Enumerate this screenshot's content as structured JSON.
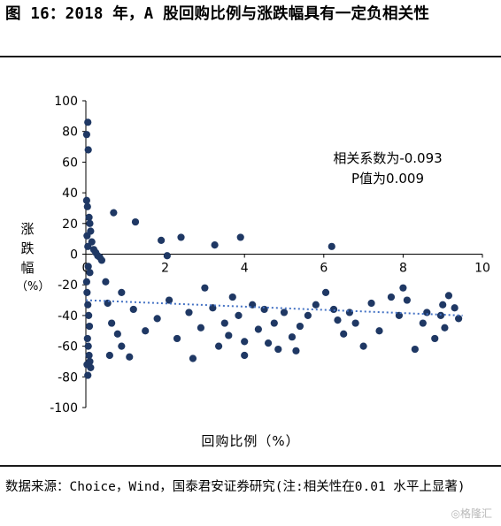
{
  "header": {
    "title": "图 16：2018 年，A 股回购比例与涨跌幅具有一定负相关性"
  },
  "chart_data": {
    "type": "scatter",
    "title": "",
    "xlabel": "回购比例（%）",
    "ylabel_chars": [
      "涨",
      "跌",
      "幅",
      "（%）"
    ],
    "xlim": [
      0,
      10
    ],
    "ylim": [
      -100,
      100
    ],
    "x_ticks": [
      0,
      2,
      4,
      6,
      8,
      10
    ],
    "y_ticks": [
      100,
      80,
      60,
      40,
      20,
      0,
      -20,
      -40,
      -60,
      -80,
      -100
    ],
    "grid": false,
    "legend": "none",
    "point_color": "#1f3864",
    "trendline": {
      "style": "dotted",
      "color": "#4472c4",
      "x": [
        0,
        9.5
      ],
      "y": [
        -30,
        -40
      ]
    },
    "annotation": [
      "相关系数为-0.093",
      "P值为0.009"
    ],
    "series": [
      {
        "points": [
          [
            0.05,
            86
          ],
          [
            0.02,
            78
          ],
          [
            0.06,
            68
          ],
          [
            0.02,
            35
          ],
          [
            0.04,
            31
          ],
          [
            0.08,
            24
          ],
          [
            0.1,
            20
          ],
          [
            0.12,
            15
          ],
          [
            0.03,
            12
          ],
          [
            0.15,
            8
          ],
          [
            0.05,
            5
          ],
          [
            0.2,
            3
          ],
          [
            0.25,
            1
          ],
          [
            0.3,
            -1
          ],
          [
            0.35,
            -2
          ],
          [
            0.4,
            -4
          ],
          [
            0.06,
            -8
          ],
          [
            0.1,
            -12
          ],
          [
            0.02,
            -18
          ],
          [
            0.03,
            -25
          ],
          [
            0.05,
            -33
          ],
          [
            0.07,
            -40
          ],
          [
            0.09,
            -47
          ],
          [
            0.04,
            -55
          ],
          [
            0.06,
            -60
          ],
          [
            0.08,
            -66
          ],
          [
            0.1,
            -70
          ],
          [
            0.03,
            -72
          ],
          [
            0.12,
            -74
          ],
          [
            0.05,
            -79
          ],
          [
            0.7,
            27
          ],
          [
            1.25,
            21
          ],
          [
            1.9,
            9
          ],
          [
            2.4,
            11
          ],
          [
            3.25,
            6
          ],
          [
            3.9,
            11
          ],
          [
            6.2,
            5
          ],
          [
            2.05,
            -1
          ],
          [
            0.5,
            -18
          ],
          [
            0.55,
            -32
          ],
          [
            0.65,
            -45
          ],
          [
            0.8,
            -52
          ],
          [
            0.9,
            -60
          ],
          [
            0.6,
            -66
          ],
          [
            1.1,
            -67
          ],
          [
            0.9,
            -25
          ],
          [
            1.2,
            -36
          ],
          [
            1.5,
            -50
          ],
          [
            1.8,
            -42
          ],
          [
            2.1,
            -30
          ],
          [
            2.3,
            -55
          ],
          [
            2.6,
            -38
          ],
          [
            2.7,
            -68
          ],
          [
            2.9,
            -48
          ],
          [
            3.0,
            -22
          ],
          [
            3.2,
            -35
          ],
          [
            3.35,
            -60
          ],
          [
            3.5,
            -45
          ],
          [
            3.6,
            -53
          ],
          [
            3.7,
            -28
          ],
          [
            3.85,
            -40
          ],
          [
            4.0,
            -57
          ],
          [
            4.2,
            -33
          ],
          [
            4.35,
            -49
          ],
          [
            4.5,
            -36
          ],
          [
            4.6,
            -58
          ],
          [
            4.75,
            -45
          ],
          [
            4.85,
            -62
          ],
          [
            5.0,
            -38
          ],
          [
            5.2,
            -54
          ],
          [
            5.4,
            -47
          ],
          [
            5.6,
            -40
          ],
          [
            5.8,
            -33
          ],
          [
            6.05,
            -25
          ],
          [
            6.25,
            -36
          ],
          [
            6.35,
            -43
          ],
          [
            6.5,
            -52
          ],
          [
            6.65,
            -38
          ],
          [
            6.8,
            -45
          ],
          [
            7.0,
            -60
          ],
          [
            7.2,
            -32
          ],
          [
            7.4,
            -50
          ],
          [
            7.7,
            -28
          ],
          [
            7.9,
            -40
          ],
          [
            8.0,
            -22
          ],
          [
            8.1,
            -30
          ],
          [
            8.3,
            -62
          ],
          [
            8.5,
            -45
          ],
          [
            8.6,
            -38
          ],
          [
            8.8,
            -55
          ],
          [
            8.95,
            -40
          ],
          [
            9.05,
            -48
          ],
          [
            9.15,
            -27
          ],
          [
            9.3,
            -35
          ],
          [
            9.4,
            -42
          ],
          [
            9.0,
            -33
          ],
          [
            5.3,
            -63
          ],
          [
            4.0,
            -66
          ]
        ]
      }
    ]
  },
  "footer": {
    "source": "数据来源：Choice，Wind，国泰君安证券研究(注:相关性在0.01 水平上显著)",
    "watermark": "◎格隆汇"
  }
}
